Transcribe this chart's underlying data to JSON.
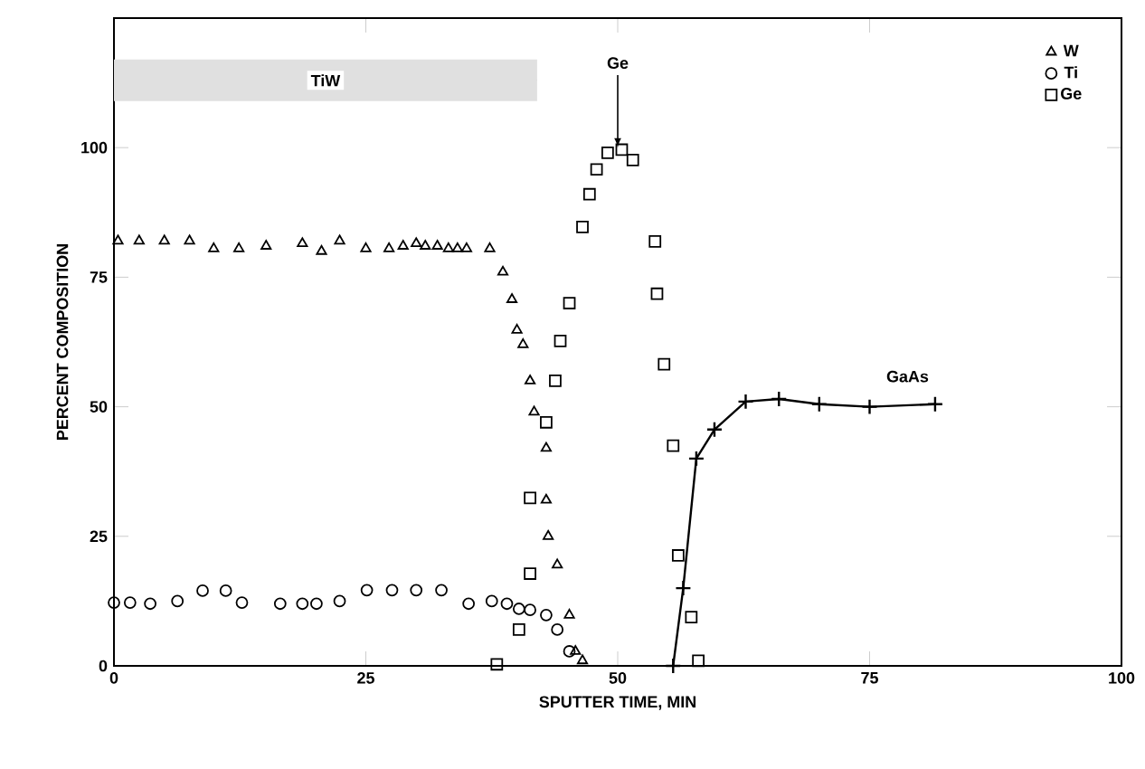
{
  "chart_data": {
    "type": "scatter",
    "xlabel": "SPUTTER TIME, MIN",
    "ylabel": "PERCENT COMPOSITION",
    "xlim": [
      0,
      100
    ],
    "ylim": [
      0,
      125
    ],
    "xticks": [
      0,
      25,
      50,
      75,
      100
    ],
    "yticks": [
      0,
      25,
      50,
      75,
      100
    ],
    "grid": false,
    "legend": "top right",
    "series": [
      {
        "name": "W",
        "color": "#000000",
        "marker": "triangle",
        "x": [
          0.4,
          2.5,
          5,
          7.5,
          9.9,
          12.4,
          15.1,
          18.7,
          20.6,
          22.4,
          25,
          27.3,
          28.7,
          30,
          30.9,
          32.1,
          33.2,
          34.1,
          35,
          37.3,
          38.6,
          39.5,
          40,
          40.6,
          41.3,
          41.7,
          42.9,
          42.9,
          43.1,
          44,
          45.2,
          45.8,
          46.5
        ],
        "values": [
          82,
          82,
          82,
          82,
          80.5,
          80.5,
          81,
          81.5,
          80,
          82,
          80.5,
          80.5,
          81,
          81.5,
          81,
          81,
          80.5,
          80.5,
          80.5,
          80.5,
          76,
          70.7,
          64.8,
          62,
          55,
          49,
          42,
          32,
          25,
          19.5,
          9.8,
          2.8,
          1
        ]
      },
      {
        "name": "Ti",
        "color": "#000000",
        "marker": "circle",
        "x": [
          0,
          1.6,
          3.6,
          6.3,
          8.8,
          11.1,
          12.7,
          16.5,
          18.7,
          20.1,
          22.4,
          25.1,
          27.6,
          30,
          32.5,
          35.2,
          37.5,
          39,
          40.2,
          41.3,
          42.9,
          44,
          45.2
        ],
        "values": [
          12.2,
          12.2,
          12,
          12.5,
          14.5,
          14.5,
          12.2,
          12,
          12,
          12,
          12.5,
          14.6,
          14.6,
          14.6,
          14.6,
          12,
          12.5,
          12,
          11,
          10.8,
          9.8,
          7,
          2.8
        ]
      },
      {
        "name": "Ge",
        "color": "#000000",
        "marker": "square",
        "x": [
          38,
          40.2,
          41.3,
          41.3,
          42.9,
          43.8,
          44.3,
          45.2,
          46.5,
          47.2,
          47.9,
          49,
          50.4,
          51.5,
          53.7,
          53.9,
          54.6,
          55.5,
          56,
          57.3,
          58
        ],
        "values": [
          0.3,
          7,
          17.8,
          32.4,
          47,
          55,
          62.7,
          70,
          84.7,
          91,
          95.8,
          99,
          99.6,
          97.6,
          81.9,
          71.8,
          58.2,
          42.5,
          21.3,
          9.4,
          1
        ]
      },
      {
        "name": "GaAs",
        "type": "line",
        "color": "#000000",
        "marker": "cross",
        "line_style": "solid",
        "x": [
          55.5,
          56.5,
          57.8,
          59.6,
          62.7,
          66,
          70,
          75,
          81.5
        ],
        "values": [
          0,
          15,
          40,
          45.6,
          51,
          51.5,
          50.5,
          50,
          50.5
        ]
      }
    ],
    "bands": [
      {
        "axis": "x",
        "from": 0,
        "to": 42,
        "label": "TiW"
      }
    ],
    "annotations": [
      {
        "text": "Ge",
        "x": 50,
        "y": 100
      }
    ]
  }
}
